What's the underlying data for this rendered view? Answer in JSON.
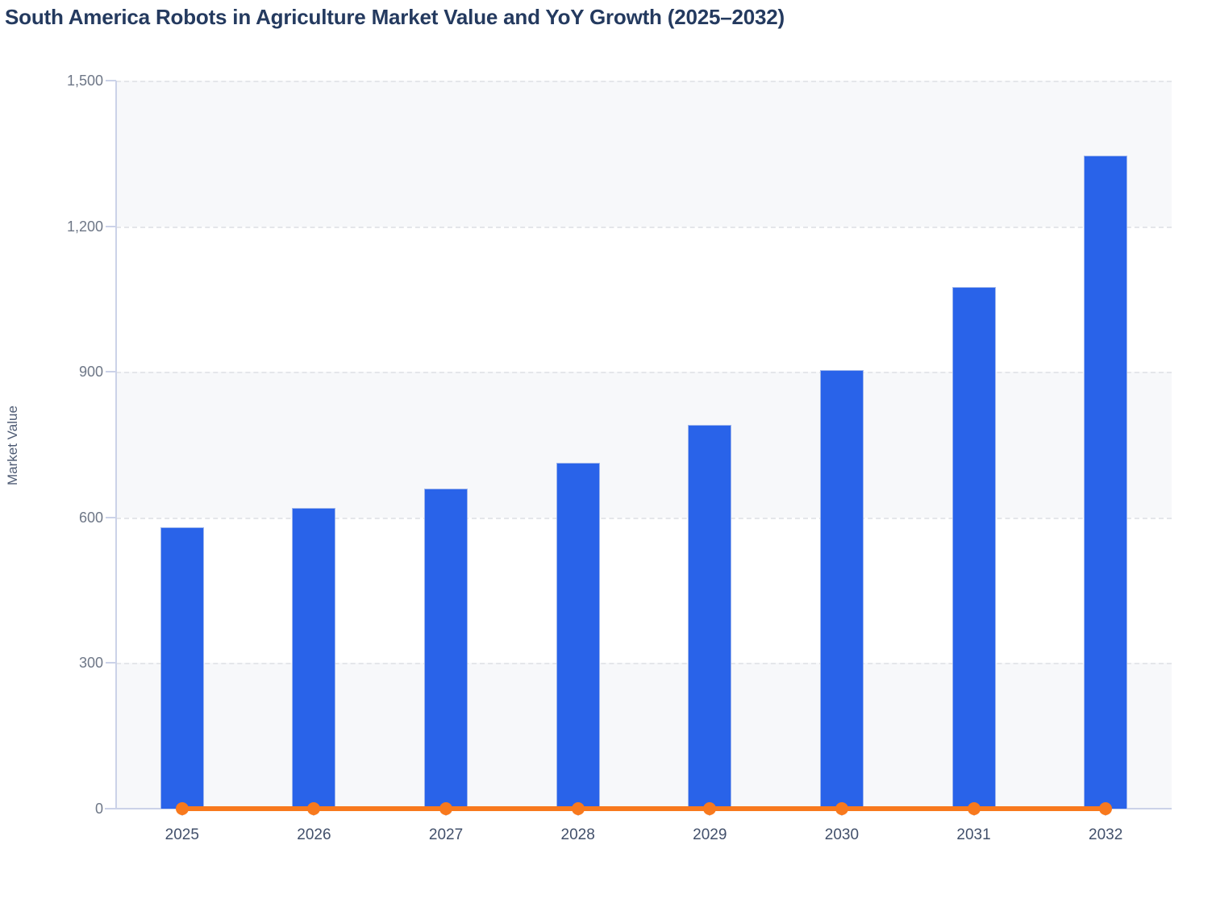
{
  "chart_data": {
    "type": "bar+line",
    "title": "South America Robots in Agriculture Market Value and YoY Growth (2025–2032)",
    "categories": [
      "2025",
      "2026",
      "2027",
      "2028",
      "2029",
      "2030",
      "2031",
      "2032"
    ],
    "series": [
      {
        "name": "Market Value",
        "type": "bar",
        "color": "#2963e9",
        "values": [
          580,
          620,
          660,
          712,
          790,
          903,
          1075,
          1345
        ]
      },
      {
        "name": "YoY Growth",
        "type": "line",
        "color": "#f8791d",
        "values": [
          0,
          0,
          0,
          0,
          0,
          0,
          0,
          0
        ],
        "rendered_at_baseline": true,
        "marker": "filled-circle"
      }
    ],
    "xlabel": "",
    "ylabel": "Market Value",
    "ylim": [
      0,
      1500
    ],
    "yticks": [
      0,
      300,
      600,
      900,
      1200,
      1500
    ],
    "ytick_labels": [
      "0",
      "300",
      "600",
      "900",
      "1,200",
      "1,500"
    ],
    "grid": "horizontal dashed",
    "legend": "none",
    "plot_background": "alternating horizontal bands"
  },
  "style": {
    "title_color": "#243a5f",
    "bar_color": "#2963e9",
    "bar_edge_color": "#9fb6ec",
    "line_color": "#f8791d",
    "band_color": "#f7f8fa",
    "band_alt_color": "#ffffff",
    "grid_color": "#e4e6ea",
    "axis_color": "#cbd2e8",
    "ytick_text_color": "#6e7787",
    "xtick_text_color": "#42506b"
  }
}
